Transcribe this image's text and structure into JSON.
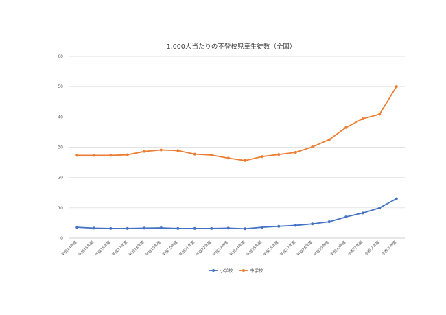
{
  "chart_data": {
    "type": "line",
    "title": "1,000人当たりの不登校児童生徒数（全国）",
    "xlabel": "",
    "ylabel": "",
    "ylim": [
      0,
      60
    ],
    "yticks": [
      0,
      10,
      20,
      30,
      40,
      50,
      60
    ],
    "grid": true,
    "legend_position": "bottom",
    "categories": [
      "平成14年度",
      "平成15年度",
      "平成16年度",
      "平成17年度",
      "平成18年度",
      "平成19年度",
      "平成20年度",
      "平成21年度",
      "平成22年度",
      "平成23年度",
      "平成24年度",
      "平成25年度",
      "平成26年度",
      "平成27年度",
      "平成28年度",
      "平成29年度",
      "平成30年度",
      "令和元年度",
      "令和２年度",
      "令和３年度"
    ],
    "series": [
      {
        "name": "小学校",
        "color": "#4472c4",
        "values": [
          3.6,
          3.3,
          3.2,
          3.2,
          3.3,
          3.4,
          3.2,
          3.2,
          3.2,
          3.3,
          3.1,
          3.6,
          3.9,
          4.2,
          4.7,
          5.4,
          7.0,
          8.3,
          10.0,
          13.0
        ]
      },
      {
        "name": "中学校",
        "color": "#ed7d31",
        "values": [
          27.3,
          27.3,
          27.3,
          27.5,
          28.6,
          29.1,
          28.9,
          27.7,
          27.4,
          26.4,
          25.6,
          26.9,
          27.6,
          28.3,
          30.1,
          32.5,
          36.5,
          39.4,
          40.9,
          50.0
        ]
      }
    ]
  }
}
